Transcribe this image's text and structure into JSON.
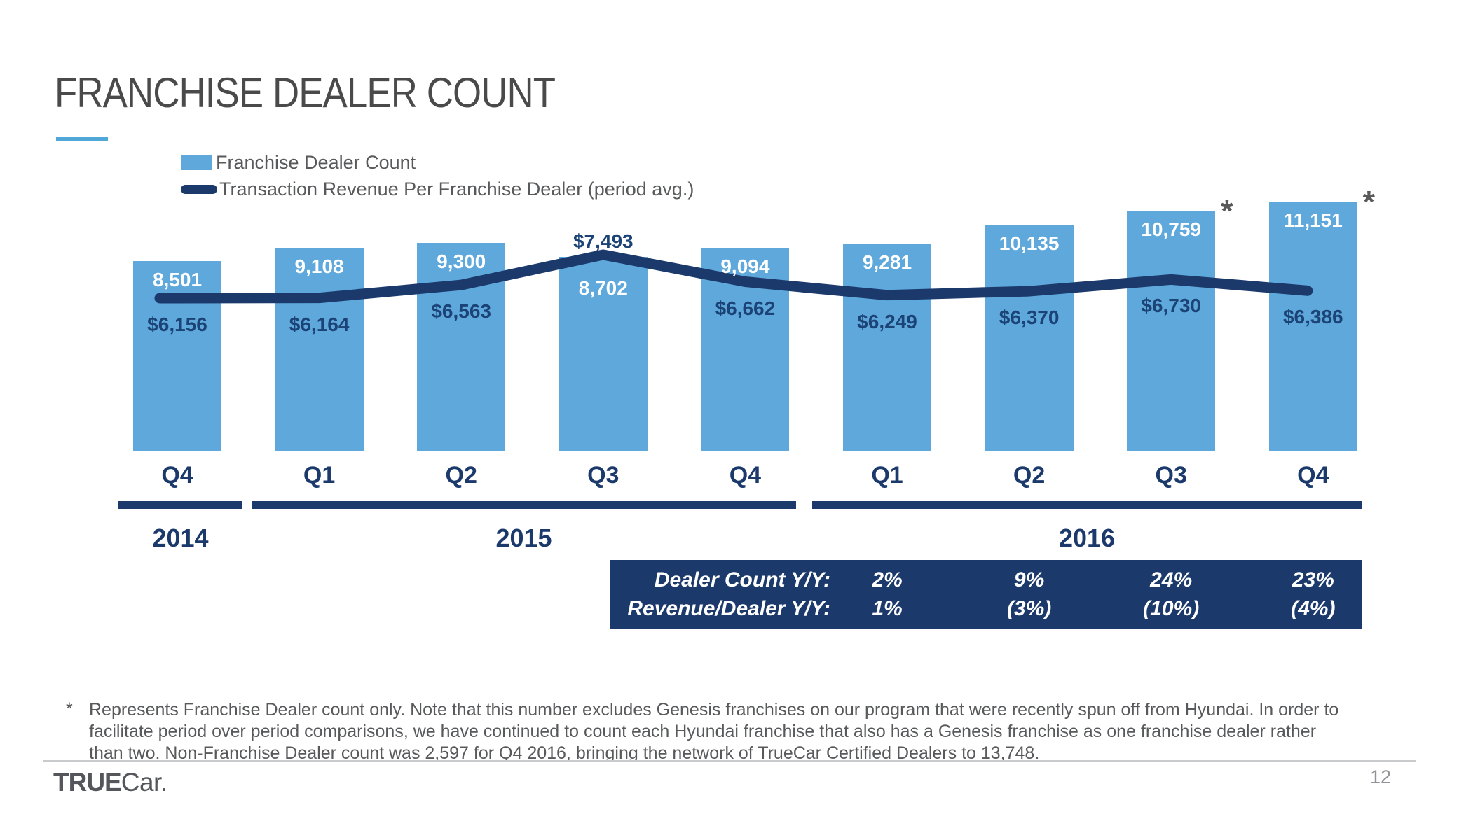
{
  "slide": {
    "title": "FRANCHISE DEALER COUNT",
    "page_number": "12",
    "footnote_marker": "*",
    "footnote": "Represents Franchise Dealer count only. Note that this number excludes Genesis franchises on our program that were recently spun off from Hyundai. In order to facilitate period over period comparisons, we have continued to count each Hyundai franchise that also has a Genesis franchise as one franchise dealer rather than two. Non-Franchise Dealer count was 2,597 for Q4 2016, bringing the network of TrueCar Certified Dealers to 13,748."
  },
  "logo": {
    "bold": "TRUE",
    "light": "Car",
    "period": "."
  },
  "legend": {
    "items": [
      {
        "label": "Franchise Dealer Count",
        "swatch": "bar-swatch",
        "color": "#5fa8dc"
      },
      {
        "label": "Transaction Revenue Per Franchise Dealer (period avg.)",
        "swatch": "line-swatch",
        "color": "#1b3a6b"
      }
    ]
  },
  "chart_data": {
    "type": "bar+line",
    "categories": [
      "Q4",
      "Q1",
      "Q2",
      "Q3",
      "Q4",
      "Q1",
      "Q2",
      "Q3",
      "Q4"
    ],
    "year_groups": [
      {
        "label": "2014",
        "from": 0,
        "to": 0
      },
      {
        "label": "2015",
        "from": 1,
        "to": 4
      },
      {
        "label": "2016",
        "from": 5,
        "to": 8
      }
    ],
    "series": [
      {
        "name": "Franchise Dealer Count",
        "type": "bar",
        "color": "#5fa8dc",
        "values": [
          8501,
          9108,
          9300,
          8702,
          9094,
          9281,
          10135,
          10759,
          11151
        ],
        "labels": [
          "8,501",
          "9,108",
          "9,300",
          "8,702",
          "9,094",
          "9,281",
          "10,135",
          "10,759",
          "11,151"
        ],
        "footnote_marker_indices": [
          7,
          8
        ]
      },
      {
        "name": "Transaction Revenue Per Franchise Dealer (period avg.)",
        "type": "line",
        "color": "#1b3a6b",
        "values": [
          6156,
          6164,
          6563,
          7493,
          6662,
          6249,
          6370,
          6730,
          6386
        ],
        "labels": [
          "$6,156",
          "$6,164",
          "$6,563",
          "$7,493",
          "$6,662",
          "$6,249",
          "$6,370",
          "$6,730",
          "$6,386"
        ],
        "label_above_indices": [
          3
        ]
      }
    ],
    "ylim_bars": [
      0,
      12000
    ],
    "grid": false,
    "legend_position": "top-left"
  },
  "table": {
    "background": "#1b3a6b",
    "rows": [
      {
        "label": "Dealer Count Y/Y:",
        "values": [
          "2%",
          "9%",
          "24%",
          "23%"
        ]
      },
      {
        "label": "Revenue/Dealer Y/Y:",
        "values": [
          "1%",
          "(3%)",
          "(10%)",
          "(4%)"
        ]
      }
    ],
    "value_column_indices": [
      5,
      6,
      7,
      8
    ]
  },
  "colors": {
    "bar_blue": "#5fa8dc",
    "navy": "#1b3a6b",
    "title_gray": "#4a4a4b",
    "text_gray": "#58595b",
    "accent_blue": "#4fa8d8",
    "asterisk_gray": "#595959"
  }
}
